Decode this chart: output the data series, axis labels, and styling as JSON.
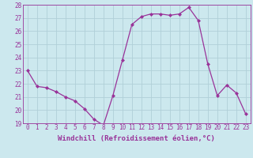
{
  "x": [
    0,
    1,
    2,
    3,
    4,
    5,
    6,
    7,
    8,
    9,
    10,
    11,
    12,
    13,
    14,
    15,
    16,
    17,
    18,
    19,
    20,
    21,
    22,
    23
  ],
  "y": [
    23.0,
    21.8,
    21.7,
    21.4,
    21.0,
    20.7,
    20.1,
    19.3,
    18.85,
    21.1,
    23.8,
    26.5,
    27.1,
    27.3,
    27.3,
    27.2,
    27.3,
    27.8,
    26.8,
    23.5,
    21.1,
    21.9,
    21.3,
    19.7
  ],
  "line_color": "#993399",
  "marker": "D",
  "marker_size": 2.0,
  "bg_color": "#cce8ee",
  "grid_color": "#b0d0d8",
  "xlabel": "Windchill (Refroidissement éolien,°C)",
  "xlabel_color": "#993399",
  "tick_color": "#993399",
  "ylim": [
    19,
    28
  ],
  "xlim": [
    -0.5,
    23.5
  ],
  "yticks": [
    19,
    20,
    21,
    22,
    23,
    24,
    25,
    26,
    27,
    28
  ],
  "xticks": [
    0,
    1,
    2,
    3,
    4,
    5,
    6,
    7,
    8,
    9,
    10,
    11,
    12,
    13,
    14,
    15,
    16,
    17,
    18,
    19,
    20,
    21,
    22,
    23
  ],
  "xtick_labels": [
    "0",
    "1",
    "2",
    "3",
    "4",
    "5",
    "6",
    "7",
    "8",
    "9",
    "10",
    "11",
    "12",
    "13",
    "14",
    "15",
    "16",
    "17",
    "18",
    "19",
    "20",
    "21",
    "22",
    "23"
  ],
  "ytick_labels": [
    "19",
    "20",
    "21",
    "22",
    "23",
    "24",
    "25",
    "26",
    "27",
    "28"
  ],
  "axis_label_fontsize": 6.5,
  "tick_fontsize": 5.5,
  "line_width": 0.9
}
